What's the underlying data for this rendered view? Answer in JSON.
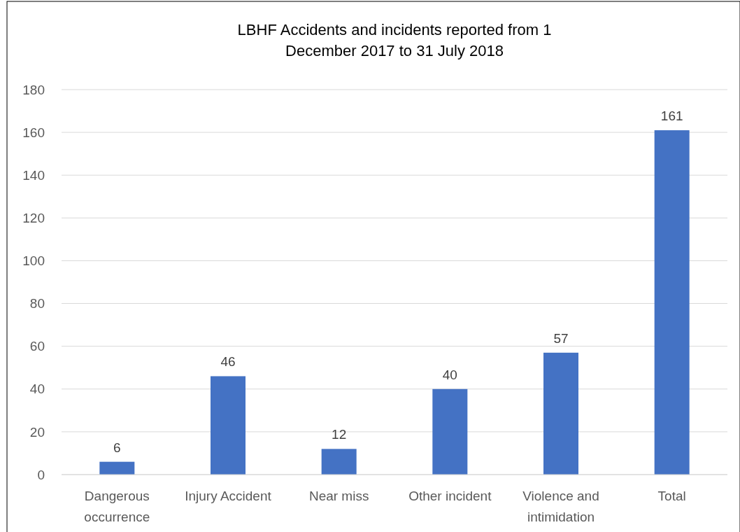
{
  "chart_data": {
    "type": "bar",
    "title": "LBHF Accidents and incidents reported from 1 December 2017 to 31 July 2018",
    "categories": [
      "Dangerous occurrence",
      "Injury Accident",
      "Near miss",
      "Other incident",
      "Violence and intimidation",
      "Total"
    ],
    "values": [
      6,
      46,
      12,
      40,
      57,
      161
    ],
    "color": "#4472c4",
    "ylim": [
      0,
      180
    ],
    "yticks": [
      0,
      20,
      40,
      60,
      80,
      100,
      120,
      140,
      160,
      180
    ],
    "grid": true,
    "data_labels": true
  }
}
